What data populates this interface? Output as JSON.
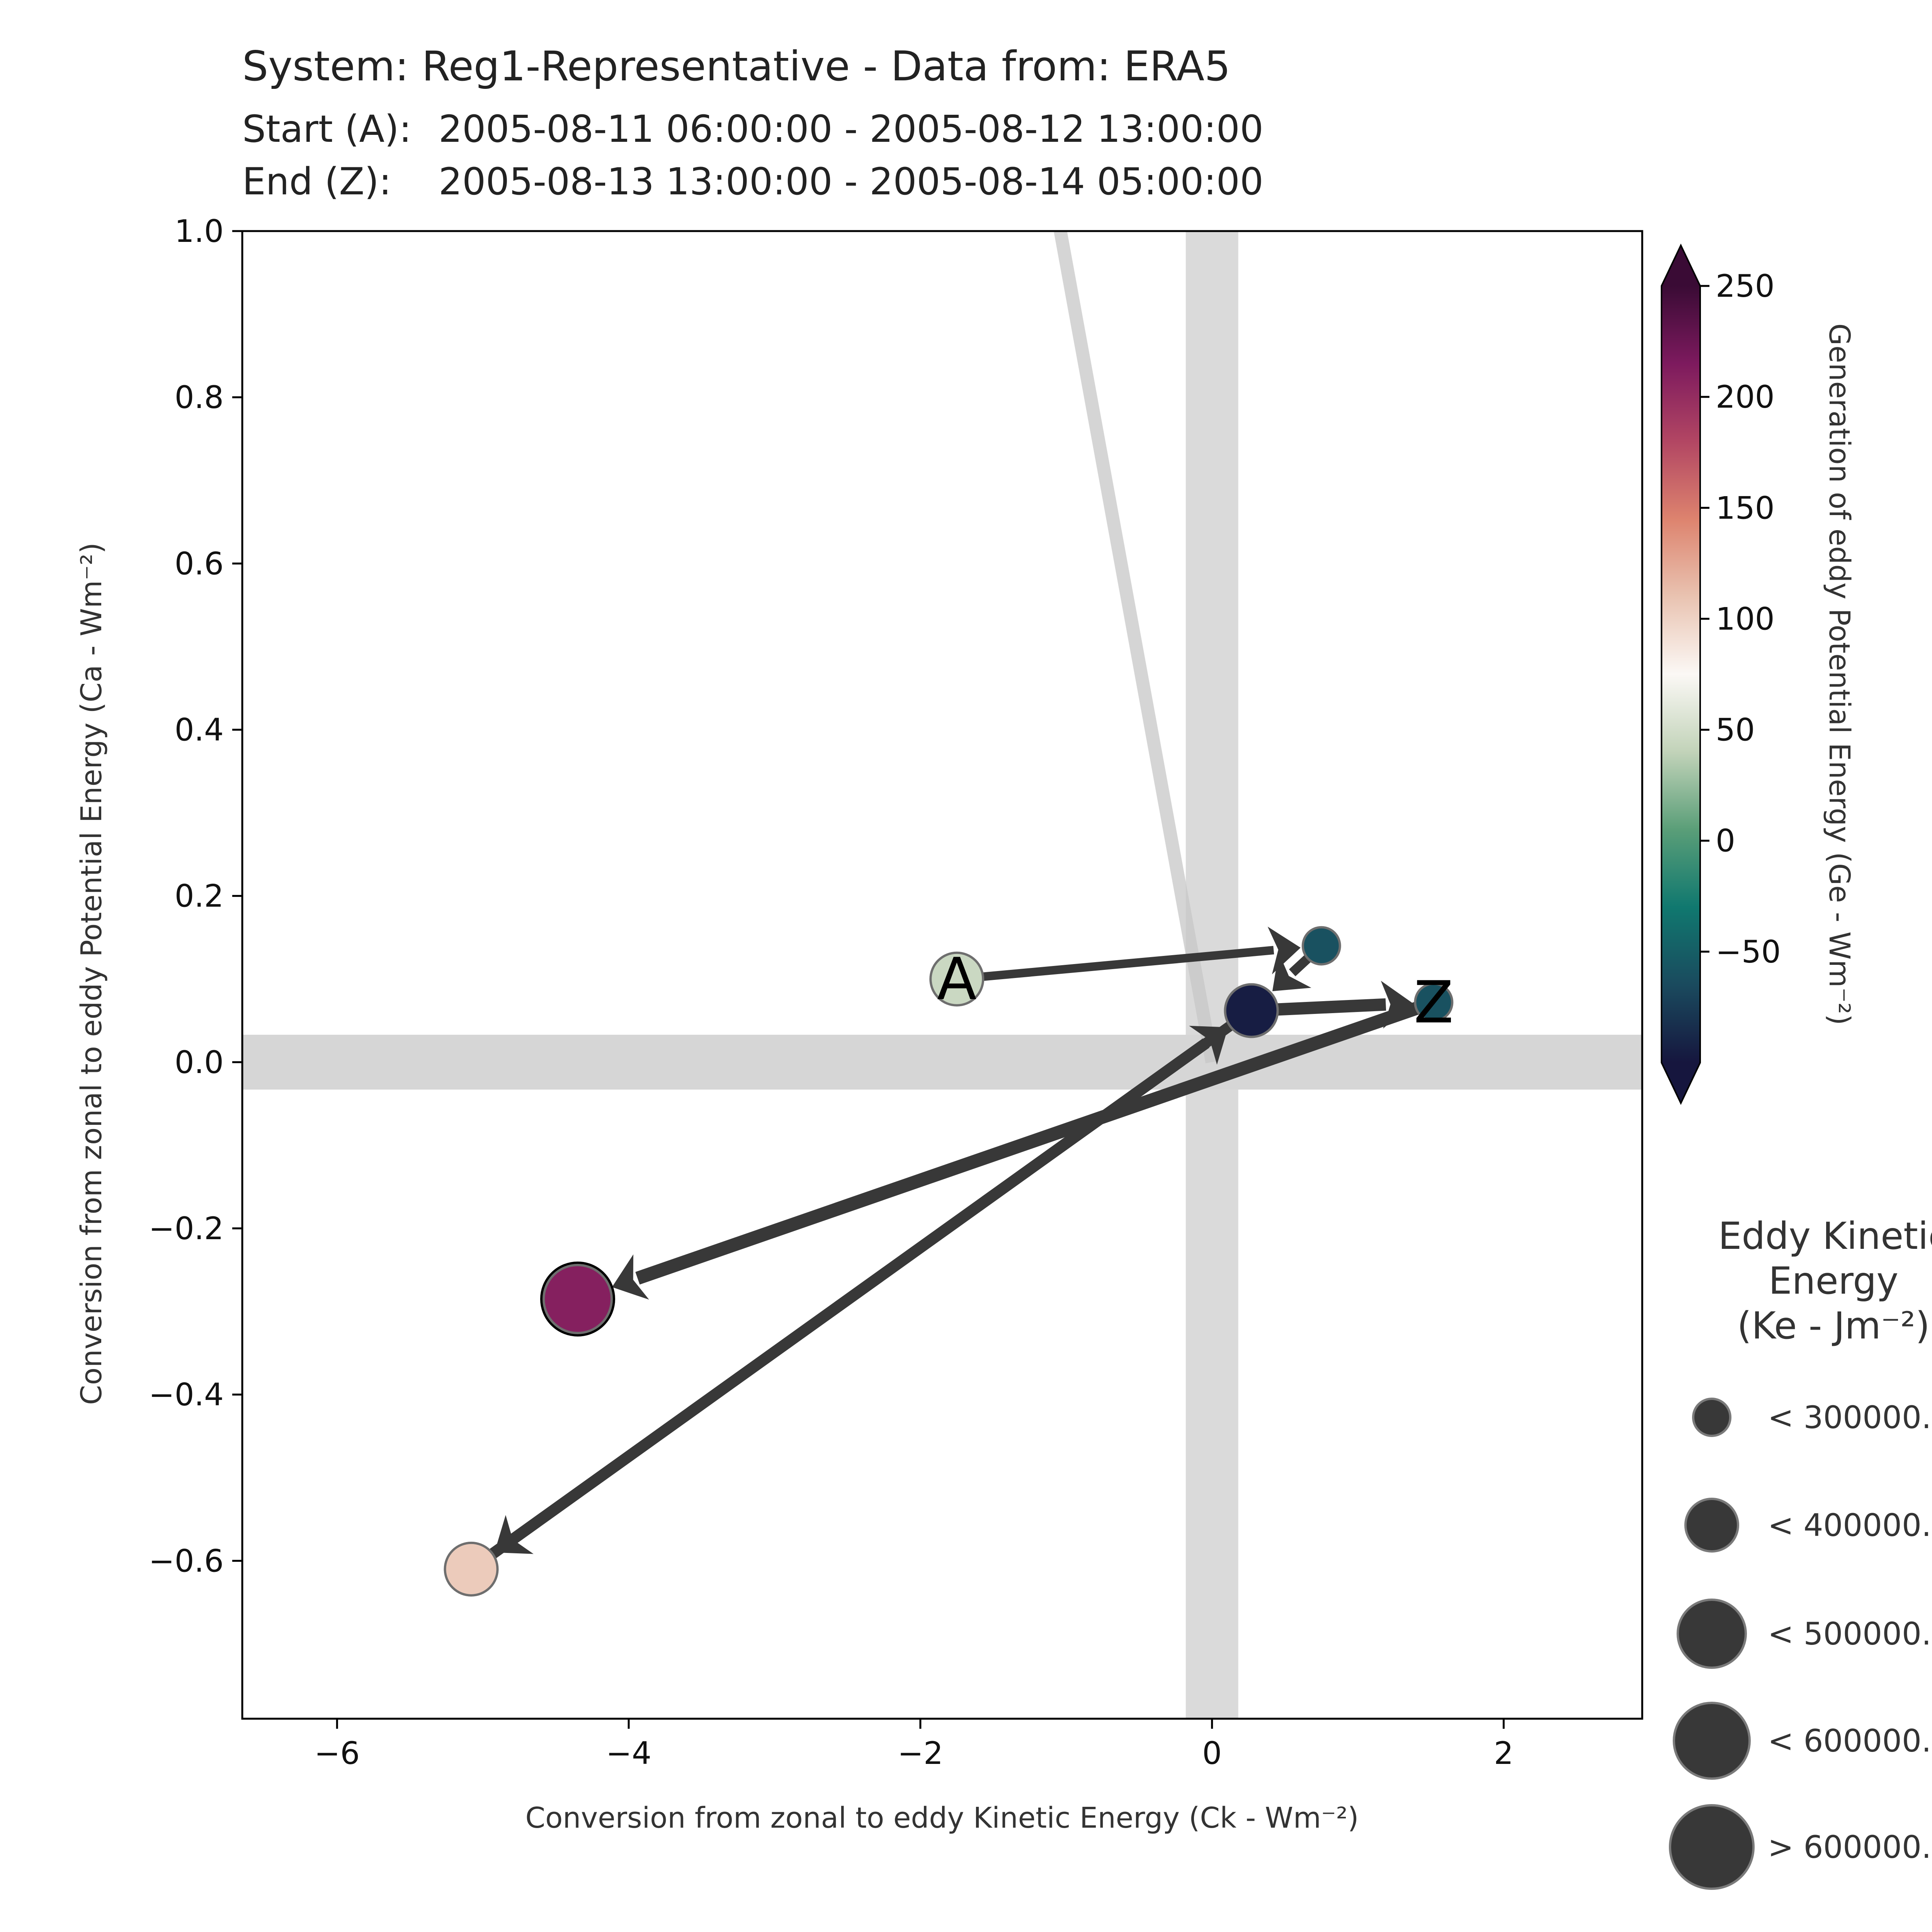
{
  "chart_data": {
    "type": "scatter",
    "title": "System: Reg1-Representative - Data from: ERA5",
    "subtitle_start_label": "Start (A):",
    "subtitle_start_range": "2005-08-11 06:00:00 - 2005-08-12 13:00:00",
    "subtitle_end_label": "End (Z):",
    "subtitle_end_range": "2005-08-13 13:00:00 - 2005-08-14 05:00:00",
    "xlabel": "Conversion from zonal to eddy Kinetic Energy (Ck -  Wm⁻²)",
    "ylabel": "Conversion from zonal to eddy Potential Energy (Ca -  Wm⁻²)",
    "xlim": [
      -6.65,
      2.95
    ],
    "ylim": [
      -0.79,
      1.0
    ],
    "x_ticks": [
      -6,
      -4,
      -2,
      0,
      2
    ],
    "x_tick_labels": [
      "−6",
      "−4",
      "−2",
      "0",
      "2"
    ],
    "y_ticks": [
      1.0,
      0.8,
      0.6,
      0.4,
      0.2,
      0.0,
      -0.2,
      -0.4,
      -0.6
    ],
    "y_tick_labels": [
      "1.0",
      "0.8",
      "0.6",
      "0.4",
      "0.2",
      "0.0",
      "−0.2",
      "−0.4",
      "−0.6"
    ],
    "points": [
      {
        "x": -1.75,
        "y": 0.1,
        "ge": 45,
        "size_class": 1,
        "letter": "A"
      },
      {
        "x": 0.75,
        "y": 0.14,
        "ge": -60,
        "size_class": 0,
        "letter": ""
      },
      {
        "x": 0.27,
        "y": 0.062,
        "ge": -95,
        "size_class": 1,
        "letter": ""
      },
      {
        "x": -5.08,
        "y": -0.61,
        "ge": 105,
        "size_class": 1,
        "letter": ""
      },
      {
        "x": 0.27,
        "y": 0.062,
        "ge": -95,
        "size_class": 1,
        "letter": ""
      },
      {
        "x": 1.52,
        "y": 0.072,
        "ge": -60,
        "size_class": 0,
        "letter": "Z"
      },
      {
        "x": -4.35,
        "y": -0.285,
        "ge": 210,
        "size_class": 2,
        "letter": ""
      }
    ],
    "mean_line": {
      "x1": -1.04,
      "y1": 1.0,
      "x2": 0.0,
      "y2": 0.0
    },
    "colorbar": {
      "label": "Generation of eddy Potential Energy (Ge -  Wm⁻²)",
      "range": [
        -100,
        250
      ],
      "ticks": [
        250,
        200,
        150,
        100,
        50,
        0,
        -50
      ],
      "tick_labels": [
        "250",
        "200",
        "150",
        "100",
        "50",
        "0",
        "−50"
      ],
      "colors": [
        "#16163e",
        "#1a4a5e",
        "#10786f",
        "#5a9e78",
        "#c2d3b9",
        "#fbf8f5",
        "#e9c3b1",
        "#dd836e",
        "#b24663",
        "#7d1a5e",
        "#3a0b35"
      ]
    },
    "size_legend": {
      "title_lines": [
        "Eddy Kinetic",
        "Energy",
        "(Ke -  Jm⁻²)"
      ],
      "items": [
        {
          "label": "< 300000."
        },
        {
          "label": "< 400000."
        },
        {
          "label": "< 500000."
        },
        {
          "label": "< 600000."
        },
        {
          "label": "> 600000."
        }
      ]
    }
  }
}
